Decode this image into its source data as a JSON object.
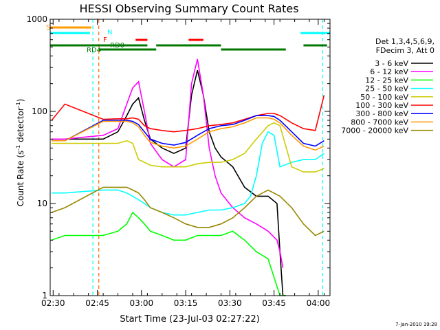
{
  "chart_data": {
    "type": "line",
    "title": "HESSI Observing Summary Count Rates",
    "xlabel": "Start Time (23-Jul-03 02:27:22)",
    "ylabel_main": "Count Rate (s",
    "ylabel_sup1": "-1",
    "ylabel_mid": " detector",
    "ylabel_sup2": "-1",
    "ylabel_end": ")",
    "yscale": "log",
    "ylim": [
      1,
      1000
    ],
    "xlim_min": [
      2.0,
      97.0
    ],
    "yticks": [
      {
        "v": 1,
        "label": "1"
      },
      {
        "v": 10,
        "label": "10"
      },
      {
        "v": 100,
        "label": "100"
      },
      {
        "v": 1000,
        "label": "1000"
      }
    ],
    "xticks": [
      {
        "m": 3,
        "label": "02:30"
      },
      {
        "m": 18,
        "label": "02:45"
      },
      {
        "m": 33,
        "label": "03:00"
      },
      {
        "m": 48,
        "label": "03:15"
      },
      {
        "m": 63,
        "label": "03:30"
      },
      {
        "m": 78,
        "label": "03:45"
      },
      {
        "m": 93,
        "label": "04:00"
      }
    ],
    "legend_header": [
      "Det 1,3,4,5,6,9,",
      "FDecim 3, Att 0"
    ],
    "series": [
      {
        "name": "3 - 6 keV",
        "color": "#000000",
        "points": [
          [
            2.5,
            50
          ],
          [
            7,
            50
          ],
          [
            20,
            50
          ],
          [
            25,
            60
          ],
          [
            28,
            90
          ],
          [
            30,
            120
          ],
          [
            32,
            140
          ],
          [
            34,
            80
          ],
          [
            36,
            50
          ],
          [
            40,
            40
          ],
          [
            44,
            35
          ],
          [
            48,
            40
          ],
          [
            50,
            150
          ],
          [
            52,
            280
          ],
          [
            54,
            150
          ],
          [
            56,
            60
          ],
          [
            58,
            40
          ],
          [
            60,
            32
          ],
          [
            64,
            25
          ],
          [
            68,
            15
          ],
          [
            72,
            12
          ],
          [
            76,
            12
          ],
          [
            79,
            10
          ],
          [
            80,
            3
          ],
          [
            81,
            1
          ],
          [
            82,
            1
          ]
        ]
      },
      {
        "name": "6 - 12 keV",
        "color": "#ff00ff",
        "points": [
          [
            2.5,
            50
          ],
          [
            7,
            50
          ],
          [
            20,
            55
          ],
          [
            25,
            65
          ],
          [
            28,
            120
          ],
          [
            30,
            180
          ],
          [
            32,
            210
          ],
          [
            34,
            100
          ],
          [
            36,
            45
          ],
          [
            40,
            30
          ],
          [
            44,
            25
          ],
          [
            48,
            30
          ],
          [
            50,
            200
          ],
          [
            52,
            370
          ],
          [
            54,
            150
          ],
          [
            56,
            40
          ],
          [
            58,
            20
          ],
          [
            60,
            13
          ],
          [
            64,
            9
          ],
          [
            68,
            7
          ],
          [
            72,
            6
          ],
          [
            76,
            5
          ],
          [
            79,
            4
          ],
          [
            80,
            3
          ],
          [
            81,
            2
          ]
        ]
      },
      {
        "name": "12 - 25 keV",
        "color": "#00ff00",
        "points": [
          [
            2.5,
            4
          ],
          [
            7,
            4.5
          ],
          [
            20,
            4.5
          ],
          [
            25,
            5
          ],
          [
            28,
            6
          ],
          [
            30,
            8
          ],
          [
            32,
            7
          ],
          [
            34,
            6
          ],
          [
            36,
            5
          ],
          [
            40,
            4.5
          ],
          [
            44,
            4
          ],
          [
            48,
            4
          ],
          [
            52,
            4.5
          ],
          [
            56,
            4.5
          ],
          [
            60,
            4.5
          ],
          [
            64,
            5
          ],
          [
            68,
            4
          ],
          [
            72,
            3
          ],
          [
            76,
            2.5
          ],
          [
            80,
            1
          ],
          [
            82,
            1
          ]
        ]
      },
      {
        "name": "25 - 50 keV",
        "color": "#00ffff",
        "points": [
          [
            2.5,
            13
          ],
          [
            7,
            13
          ],
          [
            20,
            14
          ],
          [
            25,
            14
          ],
          [
            28,
            13
          ],
          [
            30,
            12
          ],
          [
            32,
            11
          ],
          [
            34,
            10
          ],
          [
            36,
            9
          ],
          [
            40,
            8
          ],
          [
            44,
            7.5
          ],
          [
            48,
            7.5
          ],
          [
            52,
            8
          ],
          [
            56,
            8.5
          ],
          [
            60,
            8.5
          ],
          [
            64,
            9
          ],
          [
            68,
            10
          ],
          [
            70,
            12
          ],
          [
            72,
            20
          ],
          [
            74,
            45
          ],
          [
            76,
            60
          ],
          [
            78,
            55
          ],
          [
            80,
            25
          ],
          [
            84,
            28
          ],
          [
            88,
            30
          ],
          [
            92,
            30
          ],
          [
            95,
            35
          ]
        ]
      },
      {
        "name": "50 - 100 keV",
        "color": "#cccc00",
        "points": [
          [
            2.5,
            45
          ],
          [
            7,
            45
          ],
          [
            20,
            45
          ],
          [
            25,
            45
          ],
          [
            28,
            48
          ],
          [
            30,
            45
          ],
          [
            32,
            30
          ],
          [
            34,
            28
          ],
          [
            36,
            26
          ],
          [
            40,
            25
          ],
          [
            44,
            25
          ],
          [
            48,
            25
          ],
          [
            52,
            27
          ],
          [
            56,
            28
          ],
          [
            60,
            28
          ],
          [
            64,
            30
          ],
          [
            68,
            35
          ],
          [
            72,
            50
          ],
          [
            76,
            70
          ],
          [
            78,
            75
          ],
          [
            80,
            70
          ],
          [
            84,
            25
          ],
          [
            88,
            22
          ],
          [
            92,
            22
          ],
          [
            95,
            24
          ]
        ]
      },
      {
        "name": "100 - 300 keV",
        "color": "#ff0000",
        "points": [
          [
            2.5,
            80
          ],
          [
            7,
            120
          ],
          [
            20,
            82
          ],
          [
            25,
            83
          ],
          [
            28,
            83
          ],
          [
            30,
            85
          ],
          [
            32,
            82
          ],
          [
            34,
            70
          ],
          [
            36,
            65
          ],
          [
            40,
            62
          ],
          [
            44,
            60
          ],
          [
            48,
            62
          ],
          [
            52,
            65
          ],
          [
            56,
            70
          ],
          [
            60,
            72
          ],
          [
            64,
            75
          ],
          [
            68,
            82
          ],
          [
            72,
            90
          ],
          [
            76,
            95
          ],
          [
            78,
            95
          ],
          [
            80,
            90
          ],
          [
            84,
            75
          ],
          [
            88,
            65
          ],
          [
            92,
            62
          ],
          [
            95,
            150
          ]
        ]
      },
      {
        "name": "300 - 800 keV",
        "color": "#0000ff",
        "points": [
          [
            2.5,
            48
          ],
          [
            7,
            48
          ],
          [
            20,
            80
          ],
          [
            25,
            80
          ],
          [
            28,
            80
          ],
          [
            30,
            78
          ],
          [
            32,
            72
          ],
          [
            34,
            60
          ],
          [
            36,
            50
          ],
          [
            40,
            45
          ],
          [
            44,
            43
          ],
          [
            48,
            46
          ],
          [
            52,
            55
          ],
          [
            56,
            65
          ],
          [
            60,
            70
          ],
          [
            64,
            72
          ],
          [
            68,
            80
          ],
          [
            72,
            90
          ],
          [
            76,
            90
          ],
          [
            78,
            88
          ],
          [
            80,
            80
          ],
          [
            84,
            60
          ],
          [
            88,
            45
          ],
          [
            92,
            42
          ],
          [
            95,
            48
          ]
        ]
      },
      {
        "name": "800 - 7000 keV",
        "color": "#ff9900",
        "points": [
          [
            2.5,
            48
          ],
          [
            7,
            48
          ],
          [
            20,
            78
          ],
          [
            25,
            78
          ],
          [
            28,
            78
          ],
          [
            30,
            75
          ],
          [
            32,
            68
          ],
          [
            34,
            55
          ],
          [
            36,
            46
          ],
          [
            40,
            42
          ],
          [
            44,
            40
          ],
          [
            48,
            42
          ],
          [
            52,
            50
          ],
          [
            56,
            60
          ],
          [
            60,
            65
          ],
          [
            64,
            68
          ],
          [
            68,
            75
          ],
          [
            72,
            85
          ],
          [
            76,
            85
          ],
          [
            78,
            82
          ],
          [
            80,
            75
          ],
          [
            84,
            55
          ],
          [
            88,
            42
          ],
          [
            92,
            38
          ],
          [
            95,
            42
          ]
        ]
      },
      {
        "name": "7000 - 20000 keV",
        "color": "#998800",
        "points": [
          [
            2.5,
            8
          ],
          [
            7,
            9
          ],
          [
            20,
            15
          ],
          [
            25,
            15
          ],
          [
            28,
            15
          ],
          [
            30,
            14
          ],
          [
            32,
            13
          ],
          [
            34,
            11
          ],
          [
            36,
            9
          ],
          [
            40,
            8
          ],
          [
            44,
            7
          ],
          [
            48,
            6
          ],
          [
            52,
            5.5
          ],
          [
            56,
            5.5
          ],
          [
            60,
            6
          ],
          [
            64,
            7
          ],
          [
            68,
            9
          ],
          [
            72,
            12
          ],
          [
            76,
            14
          ],
          [
            80,
            12
          ],
          [
            84,
            9
          ],
          [
            88,
            6
          ],
          [
            92,
            4.5
          ],
          [
            95,
            5
          ]
        ]
      }
    ],
    "segments": [
      {
        "label": "S",
        "color": "#ff9900",
        "y": 0,
        "ranges": [
          [
            2.0,
            16.0
          ]
        ]
      },
      {
        "label": "N",
        "color": "#00ffff",
        "y": 1,
        "ranges": [
          [
            2.0,
            15.5
          ],
          [
            87.0,
            97.0
          ]
        ]
      },
      {
        "label": "F",
        "color": "#ff0000",
        "y": 2,
        "ranges": [
          [
            31.0,
            35.0
          ],
          [
            49.0,
            54.0
          ]
        ]
      },
      {
        "label": "RD0",
        "color": "#007700",
        "y": 3,
        "ranges": [
          [
            2.0,
            35.0
          ],
          [
            38.0,
            60.0
          ],
          [
            88.0,
            96.0
          ]
        ]
      },
      {
        "label": "RD4",
        "color": "#007700",
        "y": 4,
        "ranges": [
          [
            18.5,
            38.0
          ],
          [
            60.0,
            82.0
          ]
        ]
      }
    ],
    "vlines": [
      {
        "m": 16.5,
        "color": "#00ffff"
      },
      {
        "m": 18.5,
        "color": "#ff6600"
      },
      {
        "m": 94.5,
        "color": "#00ffff"
      }
    ]
  },
  "footer_date": "7-Jan-2010 19:28"
}
